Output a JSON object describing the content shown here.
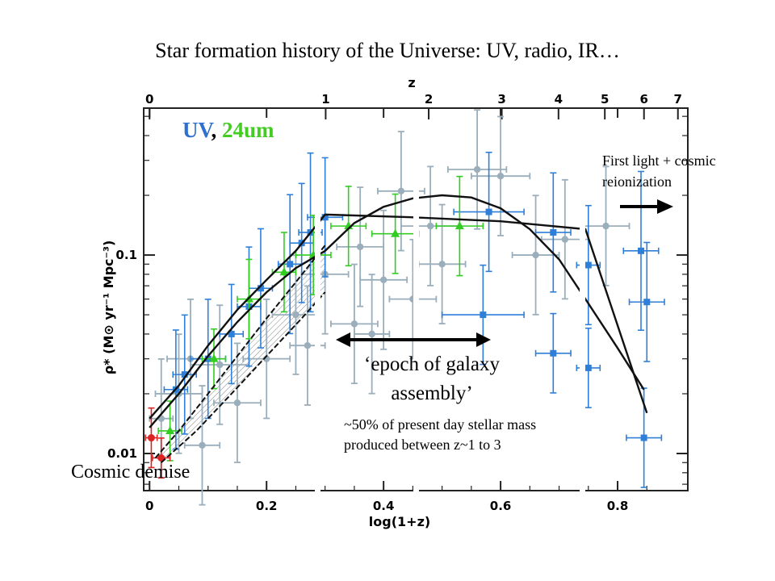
{
  "slide": {
    "title": "Star formation history of the Universe: UV, radio, IR…",
    "annotations": {
      "legend_uv": "UV",
      "legend_sep": ", ",
      "legend_24um": "24um",
      "first_light_line1": "First light + cosmic",
      "first_light_line2": "reionization",
      "epoch_line1": "‘epoch of galaxy",
      "epoch_line2": "assembly’",
      "fifty_line1": "~50% of present day stellar mass",
      "fifty_line2": "produced between z~1 to 3",
      "cosmic_demise": "Cosmic demise"
    }
  },
  "chart_data": {
    "type": "scatter",
    "xlabel": "log(1+z)",
    "ylabel": "ρ* (M⊙ yr⁻¹ Mpc⁻³)",
    "top_axis_label": "z",
    "xlim": [
      -0.01,
      0.92
    ],
    "ylim": [
      0.0065,
      0.55
    ],
    "y_scale": "log",
    "x_ticks": [
      0,
      0.2,
      0.4,
      0.6,
      0.8
    ],
    "x_tick_labels": [
      "0",
      "0.2",
      "0.4",
      "0.6",
      "0.8"
    ],
    "y_ticks": [
      0.01,
      0.1
    ],
    "y_tick_labels": [
      "0.01",
      "0.1"
    ],
    "top_ticks_z": [
      0,
      1,
      2,
      3,
      4,
      5,
      6,
      7
    ],
    "top_tick_labels": [
      "0",
      "1",
      "2",
      "3",
      "4",
      "5",
      "6",
      "7"
    ],
    "colors": {
      "uv": "#2f7fd8",
      "ir24": "#33cc22",
      "other": "#9aaebb",
      "local": "#dd2222",
      "curve": "#111111"
    },
    "series": [
      {
        "name": "UV",
        "marker": "square",
        "points": [
          {
            "x": 0.045,
            "y": 0.021,
            "xerr": 0.02,
            "yerr": 0.3
          },
          {
            "x": 0.06,
            "y": 0.025,
            "xerr": 0.02,
            "yerr": 0.3
          },
          {
            "x": 0.1,
            "y": 0.03,
            "xerr": 0.03,
            "yerr": 0.3
          },
          {
            "x": 0.14,
            "y": 0.04,
            "xerr": 0.02,
            "yerr": 0.25
          },
          {
            "x": 0.17,
            "y": 0.055,
            "xerr": 0.02,
            "yerr": 0.3
          },
          {
            "x": 0.19,
            "y": 0.068,
            "xerr": 0.02,
            "yerr": 0.3
          },
          {
            "x": 0.24,
            "y": 0.09,
            "xerr": 0.02,
            "yerr": 0.35
          },
          {
            "x": 0.26,
            "y": 0.115,
            "xerr": 0.02,
            "yerr": 0.3
          },
          {
            "x": 0.275,
            "y": 0.13,
            "xerr": 0.02,
            "yerr": 0.4
          },
          {
            "x": 0.3,
            "y": 0.155,
            "xerr": 0.03,
            "yerr": 0.3
          },
          {
            "x": 0.58,
            "y": 0.165,
            "xerr": 0.06,
            "yerr": 0.3
          },
          {
            "x": 0.69,
            "y": 0.13,
            "xerr": 0.03,
            "yerr": 0.3
          },
          {
            "x": 0.57,
            "y": 0.05,
            "xerr": 0.07,
            "yerr": 0.25
          },
          {
            "x": 0.69,
            "y": 0.032,
            "xerr": 0.03,
            "yerr": 0.2
          },
          {
            "x": 0.75,
            "y": 0.089,
            "xerr": 0.02,
            "yerr": 0.3
          },
          {
            "x": 0.75,
            "y": 0.027,
            "xerr": 0.02,
            "yerr": 0.2
          },
          {
            "x": 0.84,
            "y": 0.105,
            "xerr": 0.03,
            "yerr": 0.4
          },
          {
            "x": 0.85,
            "y": 0.058,
            "xerr": 0.03,
            "yerr": 0.3
          },
          {
            "x": 0.845,
            "y": 0.012,
            "xerr": 0.03,
            "yerr": 0.25
          }
        ]
      },
      {
        "name": "24um",
        "marker": "triangle",
        "points": [
          {
            "x": 0.035,
            "y": 0.013,
            "xerr": 0.02,
            "yerr": 0.15
          },
          {
            "x": 0.11,
            "y": 0.03,
            "xerr": 0.02,
            "yerr": 0.15
          },
          {
            "x": 0.17,
            "y": 0.06,
            "xerr": 0.02,
            "yerr": 0.2
          },
          {
            "x": 0.23,
            "y": 0.082,
            "xerr": 0.02,
            "yerr": 0.2
          },
          {
            "x": 0.28,
            "y": 0.1,
            "xerr": 0.03,
            "yerr": 0.2
          },
          {
            "x": 0.34,
            "y": 0.14,
            "xerr": 0.03,
            "yerr": 0.2
          },
          {
            "x": 0.42,
            "y": 0.128,
            "xerr": 0.04,
            "yerr": 0.2
          },
          {
            "x": 0.53,
            "y": 0.14,
            "xerr": 0.04,
            "yerr": 0.25
          }
        ]
      },
      {
        "name": "",
        "marker": "circle",
        "points": [
          {
            "x": 0.02,
            "y": 0.015,
            "xerr": 0.02,
            "yerr": 0.3
          },
          {
            "x": 0.05,
            "y": 0.02,
            "xerr": 0.04,
            "yerr": 0.3
          },
          {
            "x": 0.07,
            "y": 0.03,
            "xerr": 0.04,
            "yerr": 0.3
          },
          {
            "x": 0.09,
            "y": 0.011,
            "xerr": 0.03,
            "yerr": 0.3
          },
          {
            "x": 0.12,
            "y": 0.028,
            "xerr": 0.05,
            "yerr": 0.3
          },
          {
            "x": 0.15,
            "y": 0.018,
            "xerr": 0.04,
            "yerr": 0.3
          },
          {
            "x": 0.2,
            "y": 0.03,
            "xerr": 0.04,
            "yerr": 0.3
          },
          {
            "x": 0.25,
            "y": 0.05,
            "xerr": 0.04,
            "yerr": 0.3
          },
          {
            "x": 0.3,
            "y": 0.08,
            "xerr": 0.04,
            "yerr": 0.3
          },
          {
            "x": 0.36,
            "y": 0.11,
            "xerr": 0.04,
            "yerr": 0.3
          },
          {
            "x": 0.4,
            "y": 0.075,
            "xerr": 0.04,
            "yerr": 0.35
          },
          {
            "x": 0.43,
            "y": 0.21,
            "xerr": 0.04,
            "yerr": 0.3
          },
          {
            "x": 0.45,
            "y": 0.06,
            "xerr": 0.04,
            "yerr": 0.3
          },
          {
            "x": 0.48,
            "y": 0.14,
            "xerr": 0.05,
            "yerr": 0.3
          },
          {
            "x": 0.5,
            "y": 0.09,
            "xerr": 0.04,
            "yerr": 0.3
          },
          {
            "x": 0.56,
            "y": 0.27,
            "xerr": 0.05,
            "yerr": 0.3
          },
          {
            "x": 0.6,
            "y": 0.25,
            "xerr": 0.05,
            "yerr": 0.3
          },
          {
            "x": 0.66,
            "y": 0.1,
            "xerr": 0.04,
            "yerr": 0.3
          },
          {
            "x": 0.71,
            "y": 0.12,
            "xerr": 0.04,
            "yerr": 0.3
          },
          {
            "x": 0.78,
            "y": 0.14,
            "xerr": 0.04,
            "yerr": 0.3
          },
          {
            "x": 0.35,
            "y": 0.045,
            "xerr": 0.04,
            "yerr": 0.3
          },
          {
            "x": 0.38,
            "y": 0.04,
            "xerr": 0.03,
            "yerr": 0.3
          },
          {
            "x": 0.27,
            "y": 0.035,
            "xerr": 0.03,
            "yerr": 0.3
          }
        ]
      },
      {
        "name": "",
        "marker": "local",
        "points": [
          {
            "x": 0.003,
            "y": 0.012,
            "xerr": 0.01,
            "yerr": 0.15
          },
          {
            "x": 0.02,
            "y": 0.0095,
            "xerr": 0.015,
            "yerr": 0.1
          }
        ]
      }
    ],
    "curves": [
      {
        "points": [
          [
            0.0,
            0.015
          ],
          [
            0.05,
            0.022
          ],
          [
            0.1,
            0.035
          ],
          [
            0.15,
            0.053
          ],
          [
            0.2,
            0.075
          ],
          [
            0.25,
            0.105
          ],
          [
            0.3,
            0.16
          ],
          [
            0.45,
            0.155
          ],
          [
            0.6,
            0.148
          ],
          [
            0.745,
            0.135
          ],
          [
            0.85,
            0.016
          ]
        ]
      },
      {
        "points": [
          [
            0.0,
            0.0135
          ],
          [
            0.05,
            0.02
          ],
          [
            0.1,
            0.031
          ],
          [
            0.15,
            0.046
          ],
          [
            0.2,
            0.065
          ],
          [
            0.25,
            0.086
          ],
          [
            0.3,
            0.105
          ],
          [
            0.35,
            0.145
          ],
          [
            0.4,
            0.175
          ],
          [
            0.45,
            0.193
          ],
          [
            0.5,
            0.2
          ],
          [
            0.55,
            0.195
          ],
          [
            0.6,
            0.172
          ],
          [
            0.65,
            0.135
          ],
          [
            0.7,
            0.095
          ],
          [
            0.75,
            0.057
          ],
          [
            0.8,
            0.034
          ],
          [
            0.845,
            0.021
          ]
        ]
      },
      {
        "style": "dashed",
        "points": [
          [
            0.01,
            0.0095
          ],
          [
            0.05,
            0.013
          ],
          [
            0.1,
            0.02
          ],
          [
            0.15,
            0.031
          ],
          [
            0.2,
            0.048
          ],
          [
            0.25,
            0.073
          ],
          [
            0.3,
            0.112
          ]
        ]
      },
      {
        "style": "dashed",
        "points": [
          [
            0.02,
            0.009
          ],
          [
            0.08,
            0.013
          ],
          [
            0.14,
            0.02
          ],
          [
            0.2,
            0.031
          ],
          [
            0.26,
            0.048
          ],
          [
            0.3,
            0.065
          ]
        ]
      }
    ]
  }
}
